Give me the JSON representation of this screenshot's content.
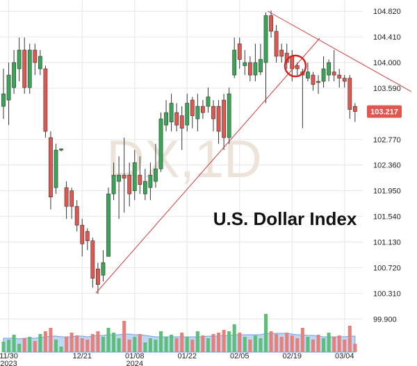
{
  "chart_data": {
    "type": "candlestick",
    "title": "U.S. Dollar Index",
    "watermark": "DX,1D",
    "categories": [
      null,
      "11/30\n2023",
      null,
      null,
      null,
      null,
      null,
      null,
      null,
      null,
      null,
      null,
      null,
      null,
      null,
      "12/21",
      null,
      null,
      null,
      null,
      null,
      null,
      null,
      null,
      null,
      "01/08\n2024",
      null,
      null,
      null,
      null,
      null,
      null,
      null,
      null,
      null,
      "01/22",
      null,
      null,
      null,
      null,
      null,
      null,
      null,
      null,
      null,
      "02/05",
      null,
      null,
      null,
      null,
      null,
      null,
      null,
      null,
      null,
      "02/19",
      null,
      null,
      null,
      null,
      null,
      null,
      null,
      null,
      null,
      "03/04",
      null,
      null
    ],
    "open": [
      103.3,
      103.4,
      103.6,
      103.9,
      104.2,
      103.6,
      104.2,
      103.9,
      103.9,
      102.8,
      102.0,
      102.6,
      102.0,
      101.95,
      101.7,
      101.4,
      101.3,
      101.15,
      100.7,
      100.6,
      100.9,
      101.9,
      102.1,
      102.2,
      102.2,
      101.95,
      102.2,
      101.9,
      102.0,
      102.1,
      102.3,
      103.0,
      103.05,
      103.2,
      103.15,
      103.0,
      103.4,
      103.1,
      103.3,
      103.3,
      103.3,
      103.3,
      103.4,
      102.8,
      103.8,
      104.3,
      103.95,
      104.0,
      103.8,
      103.85,
      104.0,
      104.75,
      104.5,
      104.2,
      104.15,
      104.1,
      103.95,
      103.85,
      103.75,
      103.8,
      103.7,
      103.7,
      103.8,
      103.85,
      103.8,
      103.75,
      103.75,
      103.3
    ],
    "high": [
      103.9,
      104.0,
      104.2,
      104.4,
      104.4,
      104.3,
      104.3,
      104.2,
      103.95,
      102.9,
      102.7,
      102.63,
      102.1,
      102.0,
      101.8,
      101.5,
      101.35,
      101.2,
      100.8,
      101.0,
      102.0,
      102.4,
      102.5,
      102.8,
      102.4,
      102.6,
      102.5,
      102.3,
      102.4,
      102.7,
      103.2,
      103.4,
      103.5,
      103.35,
      103.3,
      103.5,
      103.45,
      103.5,
      103.4,
      103.6,
      103.4,
      103.4,
      103.5,
      103.6,
      104.4,
      104.4,
      104.2,
      104.1,
      104.3,
      104.3,
      104.8,
      104.83,
      104.6,
      104.3,
      104.3,
      104.2,
      104.0,
      103.9,
      104.0,
      103.85,
      103.8,
      104.1,
      104.05,
      104.2,
      103.9,
      103.8,
      103.8,
      103.35
    ],
    "low": [
      103.1,
      103.0,
      103.5,
      103.7,
      103.5,
      103.5,
      103.8,
      103.8,
      102.8,
      101.65,
      101.9,
      102.58,
      101.5,
      101.5,
      101.3,
      100.9,
      101.0,
      100.4,
      100.3,
      100.5,
      100.9,
      101.8,
      101.5,
      101.6,
      101.7,
      101.8,
      101.9,
      101.8,
      101.8,
      102.0,
      102.25,
      102.9,
      102.9,
      102.9,
      102.6,
      102.9,
      102.95,
      102.9,
      103.1,
      103.2,
      102.9,
      102.7,
      102.6,
      102.7,
      103.75,
      103.9,
      103.8,
      103.7,
      103.7,
      103.8,
      103.35,
      104.4,
      104.0,
      104.0,
      103.9,
      103.7,
      103.8,
      102.95,
      103.7,
      103.55,
      103.5,
      103.6,
      103.7,
      103.7,
      103.6,
      103.6,
      103.1,
      103.05
    ],
    "close": [
      103.5,
      103.8,
      104.0,
      104.2,
      103.6,
      104.2,
      104.0,
      104.1,
      102.9,
      101.85,
      102.6,
      102.62,
      101.7,
      101.7,
      101.4,
      101.1,
      101.15,
      100.55,
      100.45,
      100.8,
      101.9,
      102.2,
      102.2,
      102.15,
      101.9,
      102.4,
      102.05,
      102.1,
      102.2,
      102.3,
      103.1,
      103.2,
      103.35,
      103.0,
      102.95,
      103.35,
      103.15,
      103.3,
      103.2,
      103.45,
      103.1,
      102.9,
      102.8,
      103.5,
      104.2,
      104.05,
      104.0,
      103.8,
      104.0,
      104.05,
      104.75,
      104.5,
      104.1,
      104.1,
      104.0,
      103.9,
      103.9,
      103.8,
      103.85,
      103.65,
      103.68,
      103.9,
      104.0,
      103.8,
      103.75,
      103.7,
      103.25,
      103.217
    ],
    "volume": [
      15,
      18,
      25,
      12,
      20,
      22,
      16,
      26,
      30,
      35,
      18,
      8,
      22,
      28,
      24,
      20,
      18,
      26,
      30,
      22,
      35,
      28,
      20,
      45,
      18,
      22,
      26,
      14,
      20,
      18,
      30,
      22,
      25,
      20,
      28,
      22,
      18,
      30,
      24,
      20,
      26,
      28,
      32,
      30,
      40,
      28,
      22,
      18,
      24,
      20,
      55,
      30,
      26,
      22,
      28,
      24,
      20,
      35,
      22,
      18,
      25,
      20,
      28,
      22,
      24,
      18,
      38,
      12
    ],
    "volume_average": [
      20,
      20,
      20,
      19,
      20,
      20,
      20,
      21,
      22,
      23,
      23,
      22,
      22,
      22,
      23,
      23,
      22,
      23,
      24,
      24,
      25,
      25,
      25,
      26,
      26,
      25,
      25,
      24,
      23,
      22,
      22,
      22,
      22,
      22,
      22,
      22,
      22,
      22,
      22,
      23,
      23,
      23,
      24,
      24,
      25,
      25,
      25,
      25,
      25,
      25,
      27,
      27,
      27,
      27,
      27,
      26,
      25,
      25,
      24,
      24,
      23,
      22,
      22,
      22,
      22,
      22,
      23,
      23
    ],
    "volume_lim": [
      0,
      100
    ],
    "ylim": [
      99.37,
      105.0
    ],
    "yticks": [
      {
        "value": 99.9,
        "label": "99.900"
      },
      {
        "value": 100.31,
        "label": "100.310"
      },
      {
        "value": 100.72,
        "label": "100.720"
      },
      {
        "value": 101.13,
        "label": "101.130"
      },
      {
        "value": 101.54,
        "label": "101.540"
      },
      {
        "value": 101.95,
        "label": "101.950"
      },
      {
        "value": 102.36,
        "label": "102.360"
      },
      {
        "value": 102.77,
        "label": "102.770"
      },
      {
        "value": 103.59,
        "label": "103.590"
      },
      {
        "value": 104.0,
        "label": "104.000"
      },
      {
        "value": 104.41,
        "label": "104.410"
      },
      {
        "value": 104.82,
        "label": "104.820"
      }
    ],
    "last_price": 103.217,
    "up_color": "#3aa655",
    "down_color": "#e0574f",
    "up_volume_color": "#5cbf78",
    "down_volume_color": "#e8807a",
    "volume_average_color": "#a9c8f0",
    "grid": true
  }
}
